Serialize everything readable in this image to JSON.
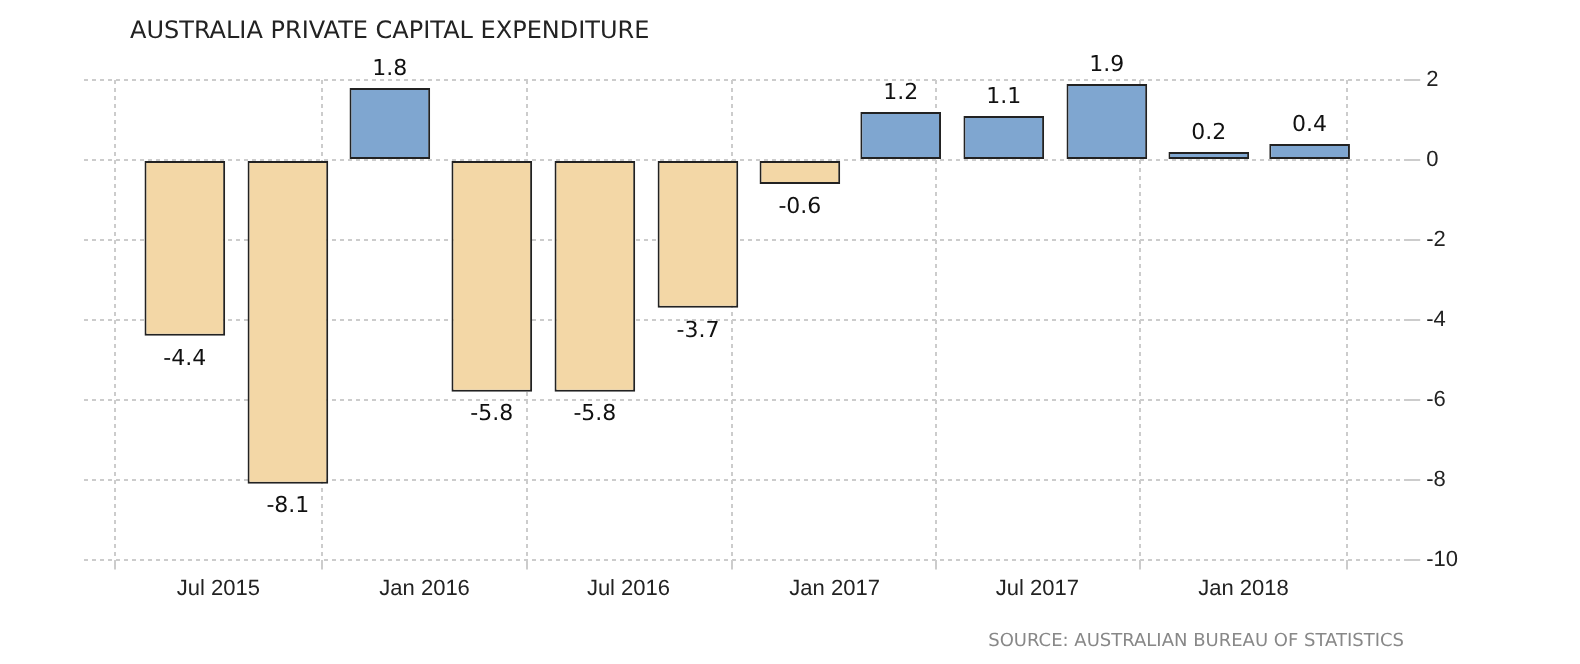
{
  "chart_data": {
    "type": "bar",
    "title": "AUSTRALIA PRIVATE CAPITAL EXPENDITURE",
    "x": [
      "2015-06-01",
      "2015-09-01",
      "2015-12-01",
      "2016-03-01",
      "2016-06-01",
      "2016-09-01",
      "2016-12-01",
      "2017-03-01",
      "2017-06-01",
      "2017-09-01",
      "2017-12-01",
      "2018-03-01"
    ],
    "values": [
      -4.4,
      -8.1,
      1.8,
      -5.8,
      -5.8,
      -3.7,
      -0.6,
      1.2,
      1.1,
      1.9,
      0.2,
      0.4
    ],
    "colors": [
      "#f3d7a6",
      "#f3d7a6",
      "#7fa6d0",
      "#f3d7a6",
      "#f3d7a6",
      "#f3d7a6",
      "#f3d7a6",
      "#7fa6d0",
      "#7fa6d0",
      "#7fa6d0",
      "#7fa6d0",
      "#7fa6d0"
    ],
    "xlim": [
      "2015-03-03",
      "2018-05-28"
    ],
    "xticks": [
      {
        "value": "2015-07-01",
        "label": "Jul 2015"
      },
      {
        "value": "2016-01-01",
        "label": "Jan 2016"
      },
      {
        "value": "2016-07-01",
        "label": "Jul 2016"
      },
      {
        "value": "2017-01-01",
        "label": "Jan 2017"
      },
      {
        "value": "2017-07-01",
        "label": "Jul 2017"
      },
      {
        "value": "2018-01-01",
        "label": "Jan 2018"
      }
    ],
    "ylim": [
      -10,
      2
    ],
    "yticks": [
      -10,
      -8,
      -6,
      -4,
      -2,
      0,
      2
    ],
    "grid": true,
    "data_labels": true,
    "annotations": [
      "SOURCE: AUSTRALIAN BUREAU OF STATISTICS"
    ]
  }
}
